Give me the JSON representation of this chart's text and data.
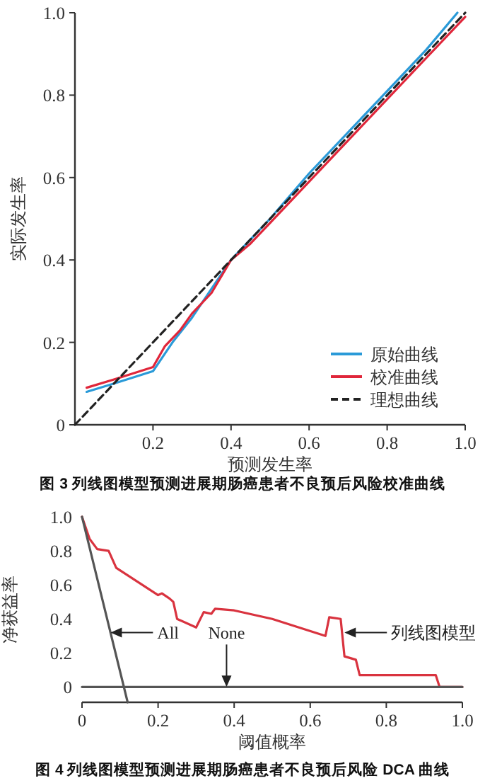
{
  "chart_data": [
    {
      "type": "line",
      "xlabel": "预测发生率",
      "ylabel": "实际发生率",
      "xlim": [
        0,
        1.0
      ],
      "ylim": [
        0,
        1.0
      ],
      "xticks": [
        0.2,
        0.4,
        0.6,
        0.8,
        {
          "value": 1,
          "label": "1.0"
        }
      ],
      "yticks": [
        0,
        0.2,
        0.4,
        0.6,
        0.8,
        {
          "value": 1,
          "label": "1.0"
        }
      ],
      "grid": false,
      "legend": "bottom right",
      "series": [
        {
          "name": "原始曲线",
          "color": "#2a9ad8",
          "line_style": "solid",
          "x": [
            0.03,
            0.1,
            0.2,
            0.25,
            0.3,
            0.35,
            0.4,
            0.45,
            0.5,
            0.6,
            0.7,
            0.8,
            0.9,
            0.98
          ],
          "values": [
            0.08,
            0.1,
            0.13,
            0.2,
            0.26,
            0.33,
            0.4,
            0.45,
            0.5,
            0.61,
            0.71,
            0.81,
            0.91,
            1.0
          ]
        },
        {
          "name": "校准曲线",
          "color": "#e0263a",
          "line_style": "solid",
          "x": [
            0.03,
            0.1,
            0.2,
            0.23,
            0.27,
            0.3,
            0.35,
            0.4,
            0.45,
            0.5,
            0.6,
            0.7,
            0.8,
            0.9,
            1.0
          ],
          "values": [
            0.09,
            0.11,
            0.14,
            0.19,
            0.23,
            0.27,
            0.32,
            0.4,
            0.44,
            0.49,
            0.59,
            0.69,
            0.79,
            0.89,
            0.99
          ]
        },
        {
          "name": "理想曲线",
          "color": "#222222",
          "line_style": "dashed",
          "x": [
            0,
            1.0
          ],
          "values": [
            0,
            1.0
          ]
        }
      ],
      "annotations": [
        "图 3 列线图模型预测进展期肠癌患者不良预后风险校准曲线"
      ]
    },
    {
      "type": "line",
      "xlabel": "阈值概率",
      "ylabel": "净获益率",
      "xlim": [
        0,
        1.0
      ],
      "ylim": [
        -0.09,
        1.0
      ],
      "xticks": [
        0,
        0.2,
        0.4,
        0.6,
        0.8,
        {
          "value": 1,
          "label": "1.0"
        }
      ],
      "yticks": [
        0,
        0.2,
        0.4,
        0.6,
        0.8,
        {
          "value": 1,
          "label": "1.0"
        }
      ],
      "grid": false,
      "series": [
        {
          "color": "#d9333f",
          "line_style": "solid",
          "x": [
            0,
            0.02,
            0.04,
            0.07,
            0.09,
            0.2,
            0.21,
            0.23,
            0.24,
            0.25,
            0.3,
            0.32,
            0.34,
            0.35,
            0.4,
            0.5,
            0.64,
            0.65,
            0.68,
            0.69,
            0.72,
            0.73,
            0.93,
            0.94,
            1.0
          ],
          "values": [
            1.0,
            0.87,
            0.81,
            0.8,
            0.7,
            0.54,
            0.55,
            0.52,
            0.5,
            0.4,
            0.35,
            0.44,
            0.43,
            0.46,
            0.45,
            0.4,
            0.3,
            0.41,
            0.4,
            0.18,
            0.16,
            0.07,
            0.07,
            0,
            0
          ]
        },
        {
          "color": "#555555",
          "line_style": "solid",
          "x": [
            0,
            0.12
          ],
          "values": [
            1.0,
            -0.09
          ]
        },
        {
          "color": "#555555",
          "line_style": "solid",
          "x": [
            0,
            1.0
          ],
          "values": [
            0,
            0
          ]
        }
      ],
      "annotations": [
        {
          "text": "All",
          "x": 0.075,
          "y": 0.32
        },
        {
          "text": "None",
          "x": 0.38,
          "y": 0
        },
        {
          "text": "列线图模型",
          "x": 0.69,
          "y": 0.32
        },
        "图 4 列线图模型预测进展期肠癌患者不良预后风险 DCA 曲线"
      ]
    }
  ]
}
